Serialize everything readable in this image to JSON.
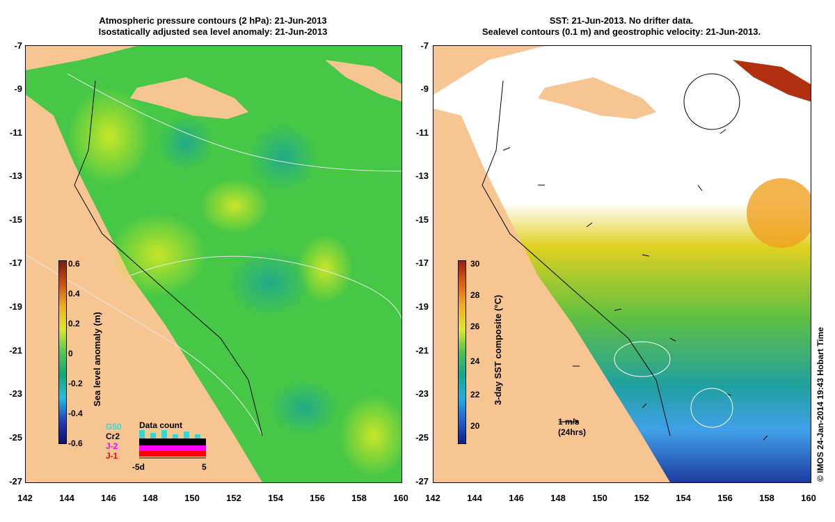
{
  "left_panel": {
    "title_line1": "Atmospheric pressure contours (2 hPa): 21-Jun-2013",
    "title_line2": "Isostatically adjusted sea level anomaly: 21-Jun-2013",
    "colorbar_title": "Sea level anomaly (m)",
    "colorbar_ticks": [
      "0.6",
      "0.4",
      "0.2",
      "0",
      "-0.2",
      "-0.4",
      "-0.6"
    ],
    "legend": {
      "title": "Data count",
      "satellites": [
        {
          "name": "G50",
          "color": "#33d6d6"
        },
        {
          "name": "Cr2",
          "color": "#000000"
        },
        {
          "name": "J-2",
          "color": "#ff00ff"
        },
        {
          "name": "J-1",
          "color": "#ff0000"
        }
      ],
      "axis_left": "-5d",
      "axis_right": "5"
    }
  },
  "right_panel": {
    "title_line1": "SST: 21-Jun-2013. No drifter data.",
    "title_line2": "Sealevel contours (0.1 m) and geostrophic velocity: 21-Jun-2013.",
    "colorbar_title": "3-day SST composite (°C)",
    "colorbar_ticks": [
      "30",
      "28",
      "26",
      "24",
      "22",
      "20"
    ],
    "velocity_scale_line1": "1 m/s",
    "velocity_scale_line2": "(24hrs)"
  },
  "axes": {
    "y_ticks": [
      "-7",
      "-9",
      "-11",
      "-13",
      "-15",
      "-17",
      "-19",
      "-21",
      "-23",
      "-25",
      "-27"
    ],
    "x_ticks": [
      "142",
      "144",
      "146",
      "148",
      "150",
      "152",
      "154",
      "156",
      "158",
      "160"
    ]
  },
  "credit": "© IMOS 24-Jan-2014 19:43 Hobart Time",
  "colors": {
    "land": "#f7c592",
    "sla_green": "#3cc83c",
    "sla_yellow": "#c8e628",
    "sst_warm": "#f0c814",
    "sst_cool": "#1e5ac8",
    "cloud": "#ffffff"
  }
}
